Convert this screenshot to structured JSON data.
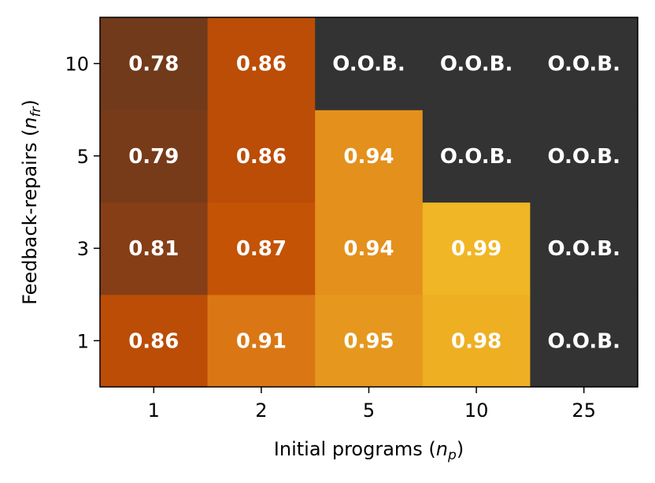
{
  "chart_data": {
    "type": "heatmap",
    "title": "",
    "xlabel": "Initial programs",
    "xlabel_var": "n",
    "xlabel_sub": "p",
    "ylabel": "Feedback-repairs",
    "ylabel_var": "n",
    "ylabel_sub": "fr",
    "x_categories": [
      "1",
      "2",
      "5",
      "10",
      "25"
    ],
    "y_categories": [
      "1",
      "3",
      "5",
      "10"
    ],
    "oob_label": "O.O.B.",
    "oob_color": "#333333",
    "values": [
      [
        0.86,
        0.91,
        0.95,
        0.98,
        null
      ],
      [
        0.81,
        0.87,
        0.94,
        0.99,
        null
      ],
      [
        0.79,
        0.86,
        0.94,
        null,
        null
      ],
      [
        0.78,
        0.86,
        null,
        null,
        null
      ]
    ],
    "value_labels": [
      [
        "0.86",
        "0.91",
        "0.95",
        "0.98",
        "O.O.B."
      ],
      [
        "0.81",
        "0.87",
        "0.94",
        "0.99",
        "O.O.B."
      ],
      [
        "0.79",
        "0.86",
        "0.94",
        "O.O.B.",
        "O.O.B."
      ],
      [
        "0.78",
        "0.86",
        "O.O.B.",
        "O.O.B.",
        "O.O.B."
      ]
    ],
    "colormap": "YlOrBr",
    "color_range": [
      0.78,
      0.99
    ]
  }
}
